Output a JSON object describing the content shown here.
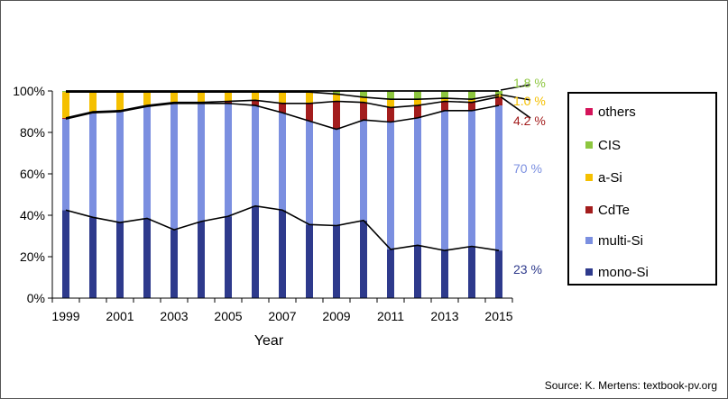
{
  "chart_data": {
    "type": "bar",
    "stacked": true,
    "xlabel": "Year",
    "ylabel": "",
    "ylim": [
      0,
      100
    ],
    "y_ticks": [
      "0%",
      "20%",
      "40%",
      "60%",
      "80%",
      "100%"
    ],
    "x_tick_labels": [
      "1999",
      "2001",
      "2003",
      "2005",
      "2007",
      "2009",
      "2011",
      "2013",
      "2015"
    ],
    "categories": [
      "1999",
      "2000",
      "2001",
      "2002",
      "2003",
      "2004",
      "2005",
      "2006",
      "2007",
      "2008",
      "2009",
      "2010",
      "2011",
      "2012",
      "2013",
      "2014",
      "2015"
    ],
    "series": [
      {
        "name": "mono-Si",
        "color": "#2E3A8C",
        "values": [
          42.5,
          39,
          36.5,
          38.5,
          33,
          37,
          39.5,
          44.5,
          42.5,
          35.5,
          35,
          37.5,
          23.5,
          25.5,
          23,
          25,
          23
        ]
      },
      {
        "name": "multi-Si",
        "color": "#7B8FE0",
        "values": [
          44,
          50.5,
          53.5,
          54,
          61,
          57,
          54.5,
          48.5,
          47,
          50,
          46.5,
          48.5,
          61.5,
          61.5,
          67.5,
          65.5,
          70
        ]
      },
      {
        "name": "CdTe",
        "color": "#A31D1D",
        "values": [
          0.5,
          0.5,
          0.5,
          0.5,
          0.5,
          0.5,
          1,
          2.5,
          4.5,
          8.5,
          13.5,
          8.5,
          7,
          6,
          4.5,
          4,
          4.2
        ]
      },
      {
        "name": "a-Si",
        "color": "#F5C000",
        "values": [
          12.5,
          9.5,
          9,
          6.5,
          5,
          5,
          4.5,
          4,
          5.5,
          5.5,
          3.5,
          2.5,
          4,
          3,
          1.5,
          1.5,
          1.0
        ]
      },
      {
        "name": "CIS",
        "color": "#8DC63F",
        "values": [
          0.5,
          0.5,
          0.5,
          0.5,
          0.5,
          0.5,
          0.5,
          0.5,
          0.5,
          0.5,
          1.5,
          3,
          4,
          4,
          3.5,
          4,
          1.8
        ]
      },
      {
        "name": "others",
        "color": "#D4145A",
        "values": [
          0,
          0,
          0,
          0,
          0,
          0,
          0,
          0,
          0,
          0,
          0,
          0,
          0,
          0,
          0,
          0,
          0
        ]
      }
    ],
    "annotations": [
      {
        "text": "1.8 %",
        "color": "#8DC63F"
      },
      {
        "text": "1.0 %",
        "color": "#F5C000"
      },
      {
        "text": "4.2 %",
        "color": "#A31D1D"
      },
      {
        "text": "70 %",
        "color": "#7B8FE0"
      },
      {
        "text": "23 %",
        "color": "#2E3A8C"
      }
    ],
    "legend": {
      "placement": "right",
      "items": [
        {
          "label": "others",
          "color": "#D4145A"
        },
        {
          "label": "CIS",
          "color": "#8DC63F"
        },
        {
          "label": "a-Si",
          "color": "#F5C000"
        },
        {
          "label": "CdTe",
          "color": "#A31D1D"
        },
        {
          "label": "multi-Si",
          "color": "#7B8FE0"
        },
        {
          "label": "mono-Si",
          "color": "#2E3A8C"
        }
      ]
    },
    "source": "Source: K. Mertens: textbook-pv.org"
  }
}
